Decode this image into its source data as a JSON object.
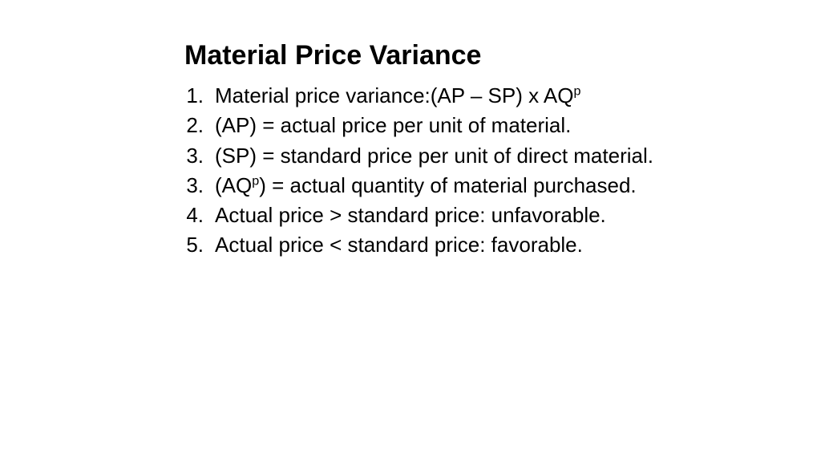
{
  "slide": {
    "title": "Material Price Variance",
    "title_fontsize": 34,
    "body_fontsize": 26,
    "text_color": "#000000",
    "background_color": "#ffffff",
    "items": [
      {
        "number": "1.",
        "html": "Material price variance:(AP – SP) x AQ<sup>p</sup>"
      },
      {
        "number": "2.",
        "html": "(AP) = actual price per unit of material."
      },
      {
        "number": "3.",
        "html": "(SP) = standard price per unit of direct material."
      },
      {
        "number": "3.",
        "html": "(AQ<sup>p</sup>) = actual quantity of  material purchased."
      },
      {
        "number": "4.",
        "html": "Actual price > standard price: unfavorable."
      },
      {
        "number": "5.",
        "html": "Actual price < standard price: favorable."
      }
    ]
  }
}
